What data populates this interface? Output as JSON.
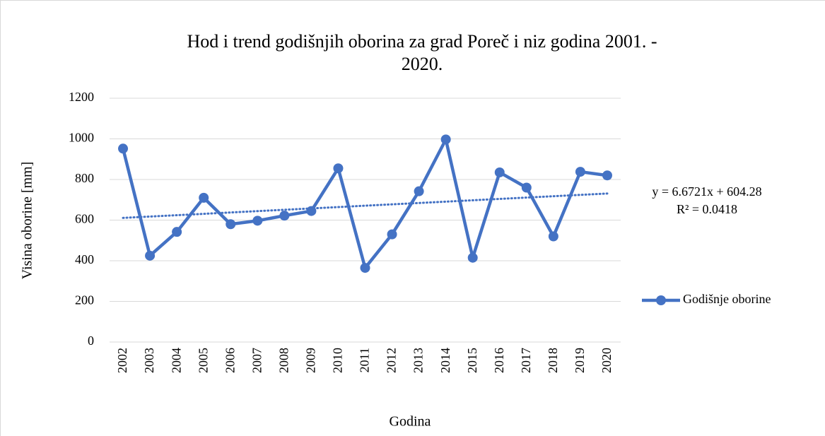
{
  "chart_data": {
    "type": "line",
    "title": [
      "Hod i trend godišnjih oborina za grad Poreč i niz godina 2001. -",
      "2020."
    ],
    "x_label": "Godina",
    "y_label": "Visina oborine [mm]",
    "categories": [
      "2002",
      "2003",
      "2004",
      "2005",
      "2006",
      "2007",
      "2008",
      "2009",
      "2010",
      "2011",
      "2012",
      "2013",
      "2014",
      "2015",
      "2016",
      "2017",
      "2018",
      "2019",
      "2020"
    ],
    "series": [
      {
        "name": "Godišnje oborine",
        "color": "#4472c4",
        "values": [
          952,
          425,
          542,
          710,
          580,
          597,
          622,
          645,
          855,
          365,
          530,
          742,
          997,
          415,
          835,
          760,
          520,
          838,
          820
        ]
      }
    ],
    "trendline": {
      "slope": 6.6721,
      "intercept": 604.28,
      "equation": "y = 6.6721x + 604.28",
      "r2": "R² = 0.0418"
    },
    "ylim": [
      0,
      1200
    ],
    "yticks": [
      0,
      200,
      400,
      600,
      800,
      1000,
      1200
    ],
    "grid": true,
    "legend": "right"
  }
}
